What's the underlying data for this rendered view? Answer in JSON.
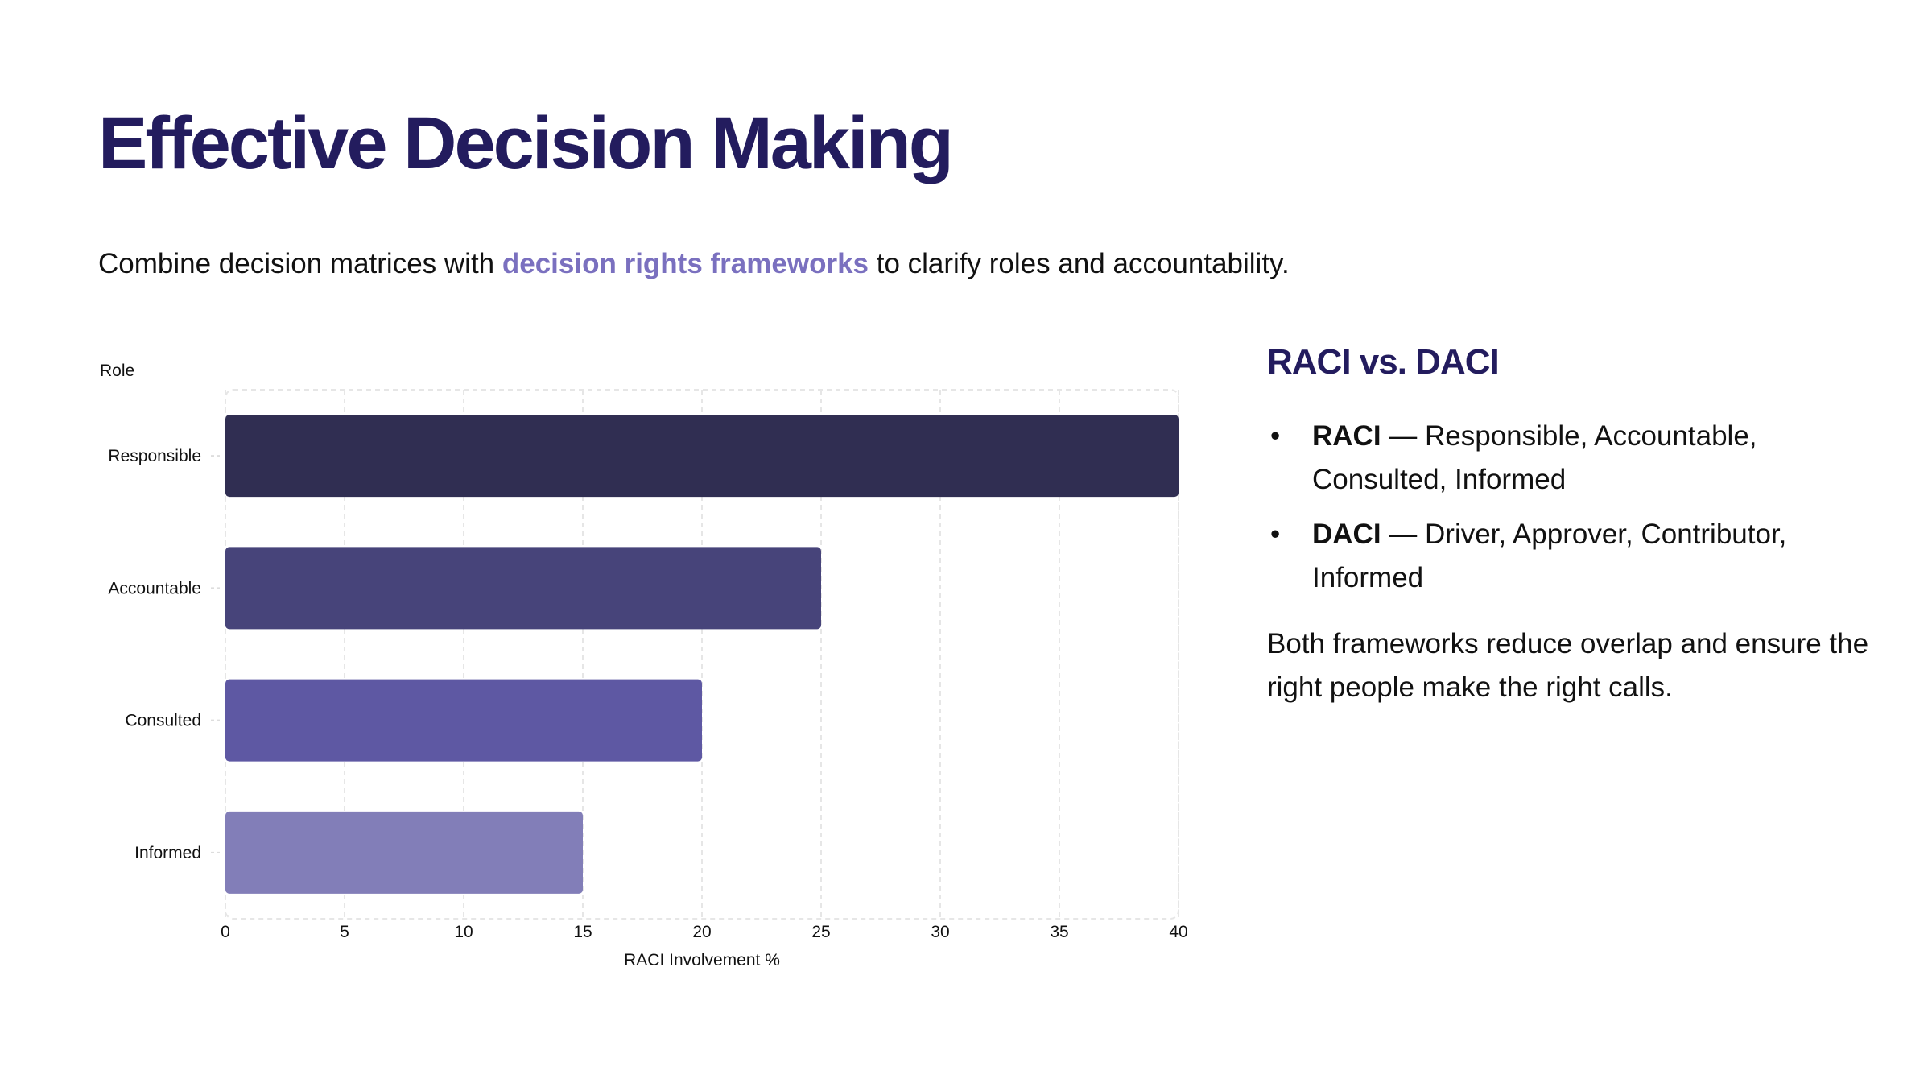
{
  "title": "Effective Decision Making",
  "subtitle": {
    "before": "Combine decision matrices with ",
    "highlight": "decision rights frameworks",
    "after": " to clarify roles and accountability."
  },
  "side": {
    "heading": "RACI vs. DACI",
    "bullets": [
      {
        "term": "RACI",
        "text": " — Responsible, Accountable, Consulted, Informed"
      },
      {
        "term": "DACI",
        "text": " — Driver, Approver, Contributor, Informed"
      }
    ],
    "paragraph": "Both frameworks reduce overlap and ensure the right people make the right calls."
  },
  "colors": {
    "title": "#231c5e",
    "highlight": "#7a70bf"
  },
  "chart_data": {
    "type": "bar",
    "orientation": "horizontal",
    "categories": [
      "Responsible",
      "Accountable",
      "Consulted",
      "Informed"
    ],
    "values": [
      40,
      25,
      20,
      15
    ],
    "colors": [
      "#302e52",
      "#47447a",
      "#5e58a3",
      "#827eb8"
    ],
    "xlabel": "RACI Involvement %",
    "ylabel": "Role",
    "xlim": [
      0,
      40
    ],
    "xticks": [
      0,
      5,
      10,
      15,
      20,
      25,
      30,
      35,
      40
    ],
    "grid": true
  }
}
